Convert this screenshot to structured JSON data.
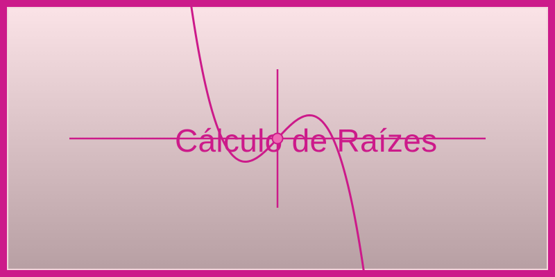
{
  "banner": {
    "title": "Cálculo de Raízes",
    "colors": {
      "accent": "#cc1a8a",
      "gradient_top": "#fbe3e7",
      "gradient_bottom": "#b79fa3",
      "root_marker": "#f06ab4"
    }
  }
}
